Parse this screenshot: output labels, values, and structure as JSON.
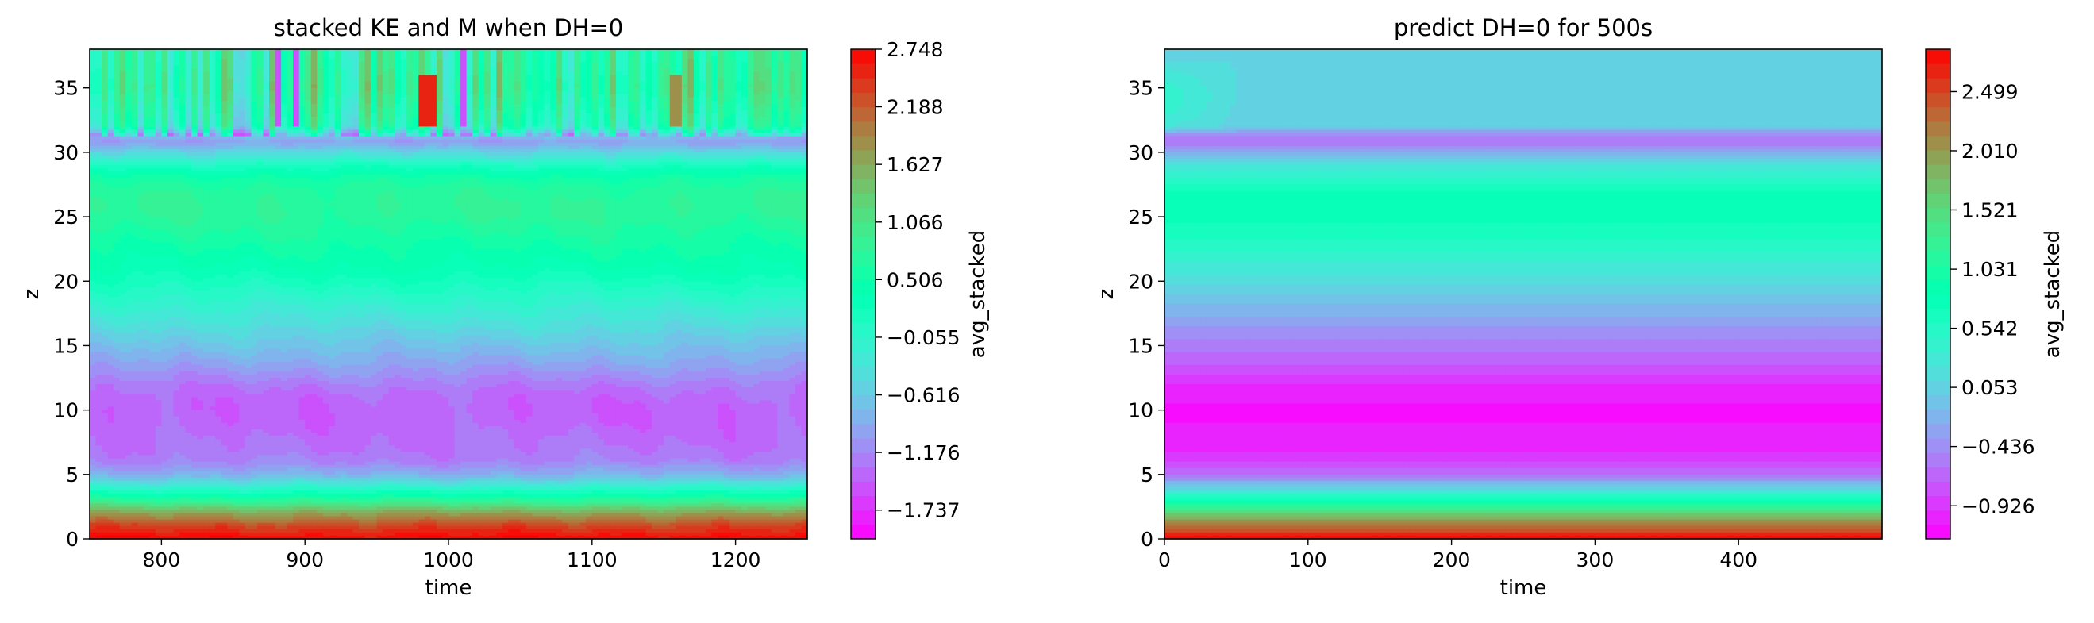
{
  "chart_data": [
    {
      "type": "heatmap",
      "subtype": "filled-contour",
      "title": "stacked KE and M when DH=0",
      "xlabel": "time",
      "ylabel": "z",
      "xlim": [
        750,
        1250
      ],
      "ylim": [
        0,
        38
      ],
      "xticks": [
        800,
        900,
        1000,
        1100,
        1200
      ],
      "yticks": [
        0,
        5,
        10,
        15,
        20,
        25,
        30,
        35
      ],
      "colorbar": {
        "label": "avg_stacked",
        "colormap": "rainbow",
        "vmin": -2.017,
        "vmax": 2.748,
        "ticks": [
          -1.737,
          -1.176,
          -0.616,
          -0.055,
          0.506,
          1.066,
          1.627,
          2.188,
          2.748
        ]
      },
      "profile": {
        "z": [
          0,
          1,
          2,
          3,
          4,
          5,
          6,
          7,
          8,
          9,
          10,
          11,
          12,
          13,
          15,
          17,
          19,
          21,
          23,
          25,
          26,
          27,
          28,
          29,
          30,
          30.5,
          31,
          32,
          35,
          38
        ],
        "value": [
          2.75,
          2.35,
          1.7,
          0.75,
          -0.15,
          -0.85,
          -1.2,
          -1.3,
          -1.35,
          -1.4,
          -1.42,
          -1.38,
          -1.25,
          -1.05,
          -0.7,
          -0.35,
          0.0,
          0.35,
          0.55,
          0.75,
          0.78,
          0.72,
          0.55,
          0.1,
          -0.5,
          -0.85,
          -1.0,
          0.3,
          0.7,
          0.55
        ]
      },
      "fluctuation": "strong vertical streaks above z=31 reaching about 2.7 near time 990; weaker banding elsewhere"
    },
    {
      "type": "heatmap",
      "subtype": "filled-contour",
      "title": "predict DH=0 for 500s",
      "xlabel": "time",
      "ylabel": "z",
      "xlim": [
        0,
        500
      ],
      "ylim": [
        0,
        38
      ],
      "xticks": [
        0,
        100,
        200,
        300,
        400
      ],
      "yticks": [
        0,
        5,
        10,
        15,
        20,
        25,
        30,
        35
      ],
      "colorbar": {
        "label": "avg_stacked",
        "colormap": "rainbow",
        "vmin": -1.2,
        "vmax": 2.85,
        "ticks": [
          -0.926,
          -0.436,
          0.053,
          0.542,
          1.031,
          1.521,
          2.01,
          2.499
        ]
      },
      "profile": {
        "z": [
          0,
          1,
          2,
          3,
          4,
          5,
          6,
          7,
          8,
          9,
          10,
          11,
          12,
          13,
          15,
          17,
          19,
          21,
          23,
          25,
          26,
          27,
          28,
          29,
          30,
          30.5,
          31,
          31.5,
          32,
          35,
          38
        ],
        "value": [
          2.8,
          2.3,
          1.6,
          0.8,
          0.0,
          -0.6,
          -0.85,
          -0.98,
          -1.05,
          -1.08,
          -1.1,
          -1.05,
          -0.95,
          -0.8,
          -0.55,
          -0.3,
          0.0,
          0.3,
          0.55,
          0.75,
          0.78,
          0.7,
          0.5,
          0.2,
          -0.2,
          -0.5,
          -0.6,
          -0.35,
          0.05,
          0.1,
          0.1
        ]
      },
      "fluctuation": "smooth in time; slight warm region near z=33 for time below 80"
    }
  ]
}
